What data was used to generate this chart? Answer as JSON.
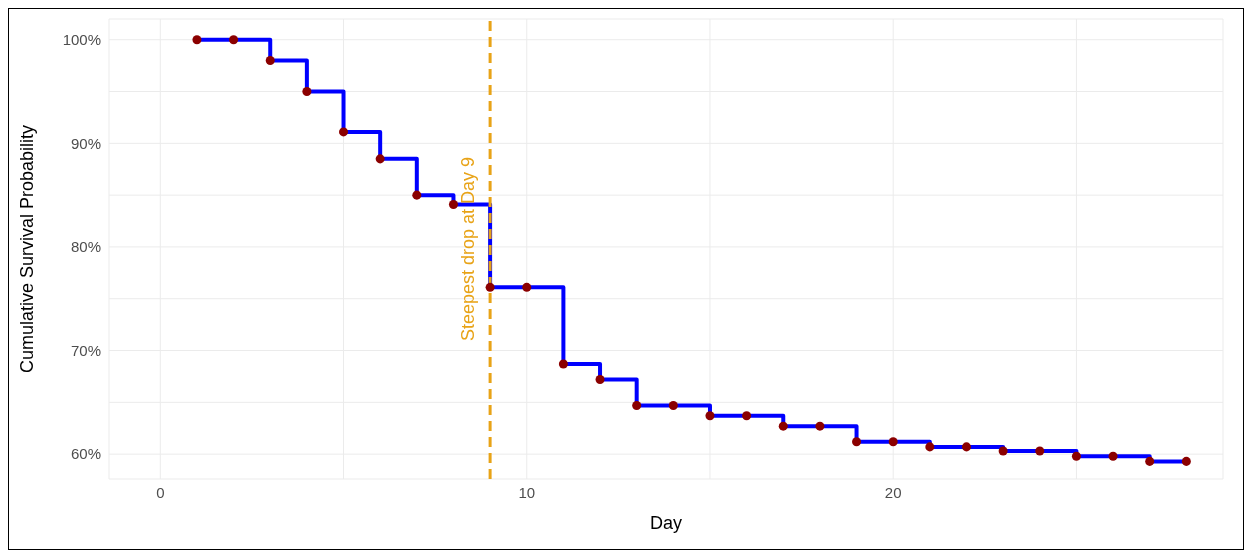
{
  "chart_data": {
    "type": "step",
    "xlabel": "Day",
    "ylabel": "Cumulative Survival Probability",
    "x": [
      1,
      2,
      3,
      4,
      5,
      6,
      7,
      8,
      9,
      10,
      11,
      12,
      13,
      14,
      15,
      16,
      17,
      18,
      19,
      20,
      21,
      22,
      23,
      24,
      25,
      26,
      27,
      28
    ],
    "series": [
      {
        "color": "#0000ff",
        "marker": "none",
        "values": [
          100,
          100,
          98.0,
          95.0,
          91.1,
          88.5,
          85.0,
          84.1,
          76.1,
          76.1,
          68.7,
          67.2,
          64.7,
          64.7,
          63.7,
          63.7,
          62.7,
          62.7,
          61.2,
          61.2,
          60.7,
          60.7,
          60.3,
          60.3,
          59.8,
          59.8,
          59.3,
          59.3
        ]
      },
      {
        "type": "scatter",
        "color": "#8b0000",
        "marker": "circle",
        "values": [
          100,
          100,
          98.0,
          95.0,
          91.1,
          88.5,
          85.0,
          84.1,
          76.1,
          76.1,
          68.7,
          67.2,
          64.7,
          64.7,
          63.7,
          63.7,
          62.7,
          62.7,
          61.2,
          61.2,
          60.7,
          60.7,
          60.3,
          60.3,
          59.8,
          59.8,
          59.3,
          59.3
        ]
      }
    ],
    "xlim": [
      -1.4,
      29
    ],
    "xticks": [
      0,
      {
        "value": 5,
        "label": null
      },
      10,
      {
        "value": 15,
        "label": null
      },
      20,
      {
        "value": 25,
        "label": null
      }
    ],
    "ylim": [
      57.6,
      102
    ],
    "yticks": [
      {
        "value": 60,
        "label": "60%"
      },
      {
        "value": 65,
        "label": null
      },
      {
        "value": 70,
        "label": "70%"
      },
      {
        "value": 75,
        "label": null
      },
      {
        "value": 80,
        "label": "80%"
      },
      {
        "value": 85,
        "label": null
      },
      {
        "value": 90,
        "label": "90%"
      },
      {
        "value": 95,
        "label": null
      },
      {
        "value": 100,
        "label": "100%"
      }
    ],
    "ref_lines": [
      {
        "axis": "x",
        "value": 9,
        "label": "Steepest drop at Day 9",
        "color": "#e8a317",
        "line_style": "dashed"
      }
    ],
    "grid": true
  }
}
